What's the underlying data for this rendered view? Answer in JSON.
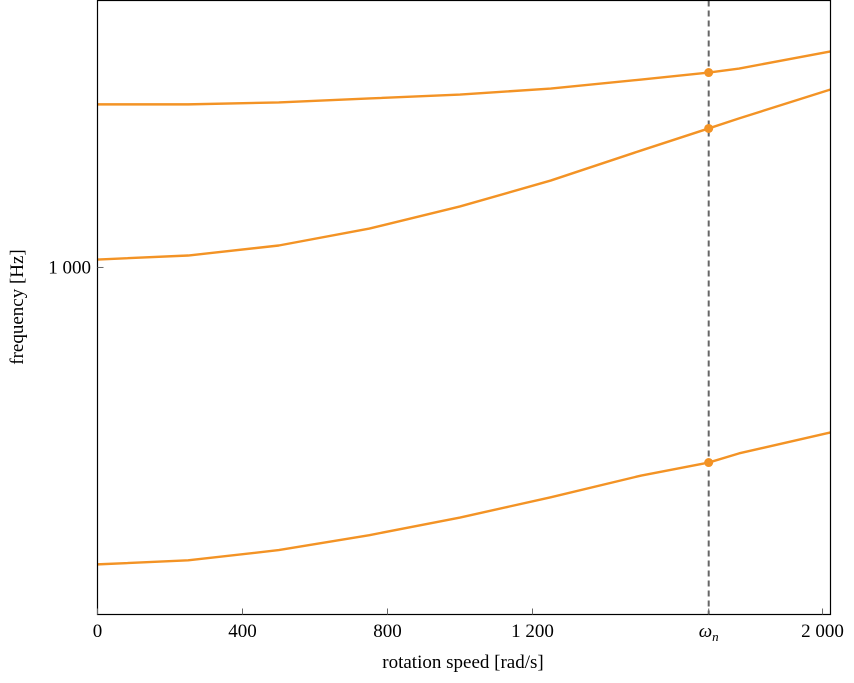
{
  "chart_data": {
    "type": "line",
    "xlabel": "rotation speed [rad/s]",
    "ylabel": "frequency [Hz]",
    "xlim": [
      0,
      2022
    ],
    "ylim": [
      264,
      2786
    ],
    "yscale": "log",
    "grid": false,
    "x_ticks": [
      {
        "value": 0,
        "label": "0"
      },
      {
        "value": 400,
        "label": "400"
      },
      {
        "value": 800,
        "label": "800"
      },
      {
        "value": 1200,
        "label": "1 200"
      },
      {
        "value": 1686,
        "label": "ω",
        "sub": "n"
      },
      {
        "value": 2000,
        "label": "2 000"
      }
    ],
    "y_ticks": [
      {
        "value": 1000,
        "label": "1 000"
      }
    ],
    "x": [
      0,
      250,
      500,
      750,
      1000,
      1250,
      1500,
      1686,
      1770,
      2022
    ],
    "series": [
      {
        "values": [
          1870,
          1870,
          1884,
          1913,
          1942,
          1987,
          2057,
          2113,
          2146,
          2291
        ]
      },
      {
        "values": [
          1031,
          1047,
          1088,
          1161,
          1264,
          1396,
          1567,
          1705,
          1772,
          1980
        ]
      },
      {
        "values": [
          320,
          325,
          338,
          358,
          383,
          414,
          450,
          473,
          490,
          531
        ]
      }
    ],
    "vline": {
      "x": 1686,
      "style": "dashed"
    },
    "markers_at_x": 1686,
    "colors": {
      "series": "#f39325",
      "vline": "#666666",
      "axis": "#000000"
    }
  }
}
